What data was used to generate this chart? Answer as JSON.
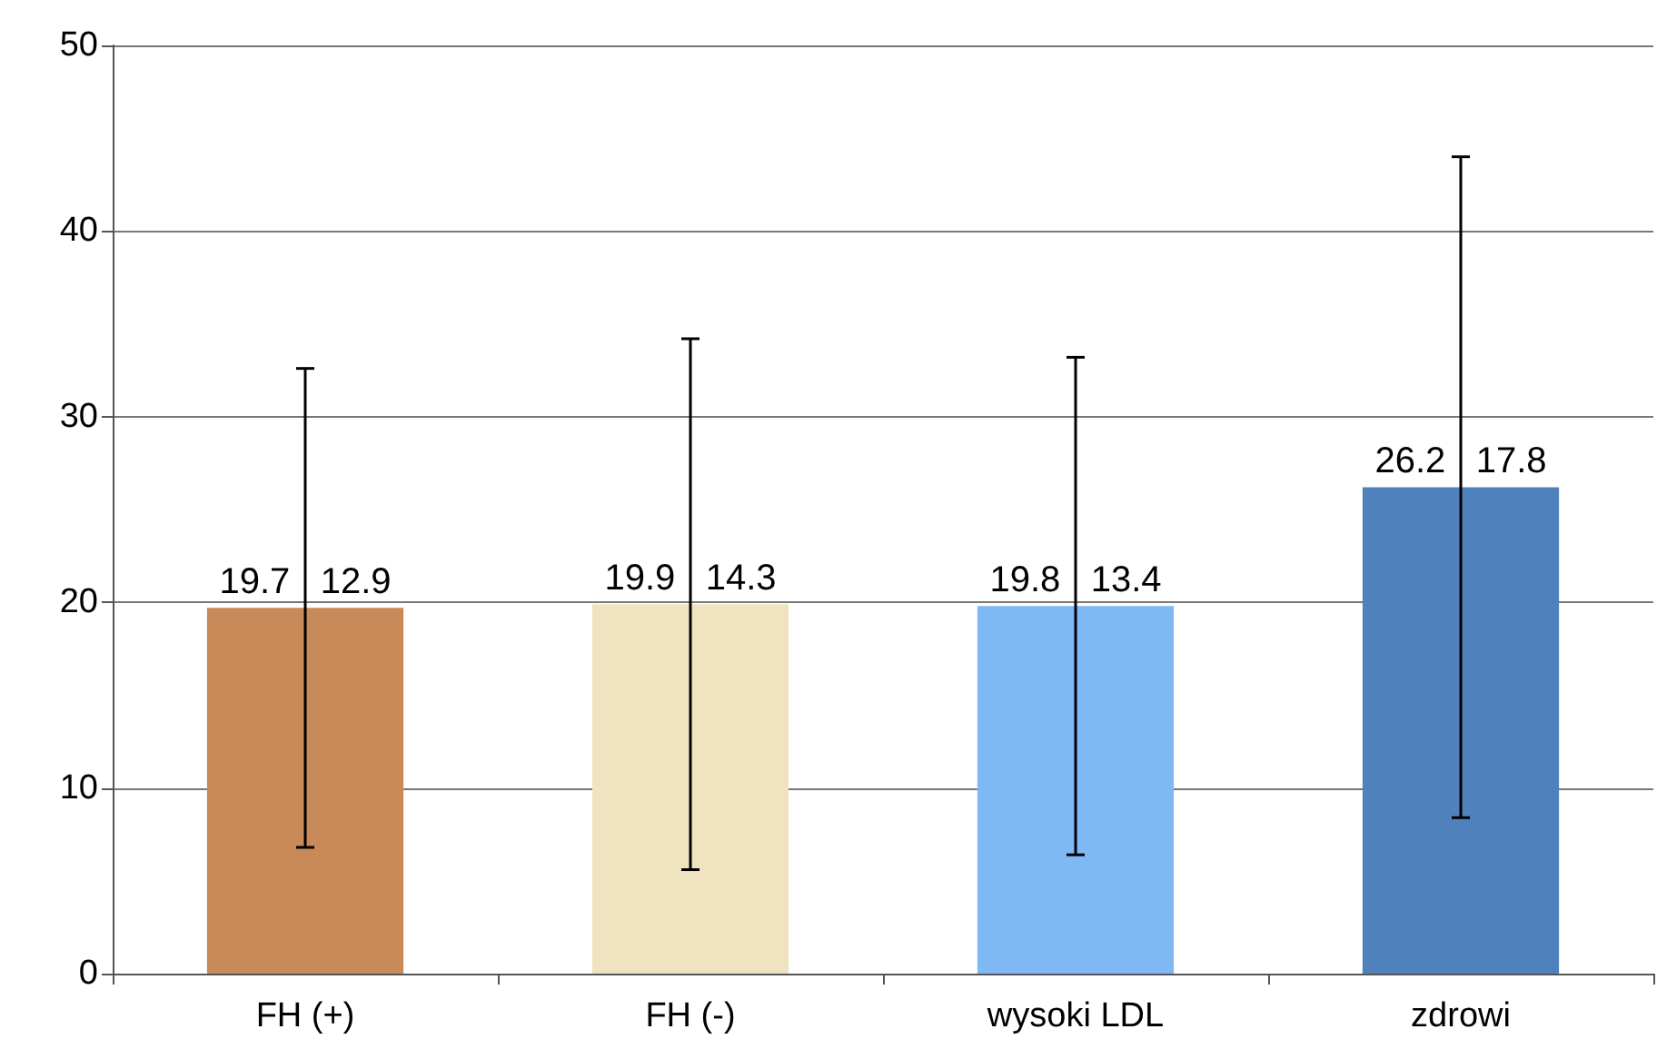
{
  "chart_data": {
    "type": "bar",
    "categories": [
      "FH (+)",
      "FH (-)",
      "wysoki LDL",
      "zdrowi"
    ],
    "values": [
      19.7,
      19.9,
      19.8,
      26.2
    ],
    "errors": [
      12.9,
      14.3,
      13.4,
      17.8
    ],
    "value_labels": [
      "19.7   12.9",
      "19.9   14.3",
      "19.8   13.4",
      "26.2   17.8"
    ],
    "colors": [
      "#c98a5a",
      "#efe3c0",
      "#7fb8f5",
      "#4f81bd"
    ],
    "ylim": [
      0,
      50
    ],
    "yticks": [
      0,
      10,
      20,
      30,
      40,
      50
    ],
    "grid": "y"
  }
}
